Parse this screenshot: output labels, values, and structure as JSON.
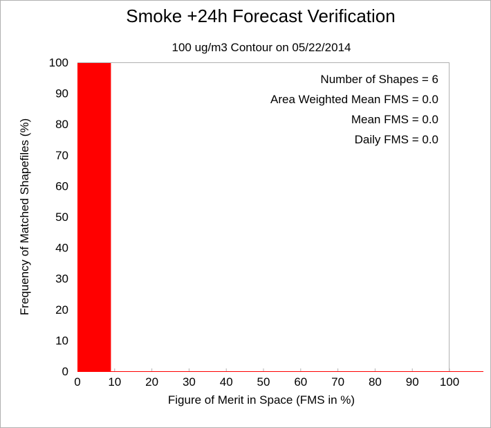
{
  "chart_data": {
    "type": "bar",
    "title": "Smoke +24h Forecast Verification",
    "subtitle": "100 ug/m3 Contour on 05/22/2014",
    "xlabel": "Figure of Merit in Space (FMS in %)",
    "ylabel": "Frequency of Matched Shapefiles (%)",
    "xlim": [
      0,
      100
    ],
    "ylim": [
      0,
      100
    ],
    "x_ticks": [
      0,
      10,
      20,
      30,
      40,
      50,
      60,
      70,
      80,
      90,
      100
    ],
    "y_ticks": [
      0,
      10,
      20,
      30,
      40,
      50,
      60,
      70,
      80,
      90,
      100
    ],
    "bin_width": 9,
    "bins": [
      {
        "start": 0,
        "value": 100
      },
      {
        "start": 9,
        "value": 0
      },
      {
        "start": 18,
        "value": 0
      },
      {
        "start": 27,
        "value": 0
      },
      {
        "start": 36,
        "value": 0
      },
      {
        "start": 45,
        "value": 0
      },
      {
        "start": 54,
        "value": 0
      },
      {
        "start": 63,
        "value": 0
      },
      {
        "start": 72,
        "value": 0
      },
      {
        "start": 81,
        "value": 0
      },
      {
        "start": 90,
        "value": 0
      }
    ],
    "bar_color": "#ff0000",
    "grid": false,
    "annotations": [
      "Number of Shapes = 6",
      "Area Weighted Mean FMS = 0.0",
      "Mean FMS = 0.0",
      "Daily FMS = 0.0"
    ]
  }
}
